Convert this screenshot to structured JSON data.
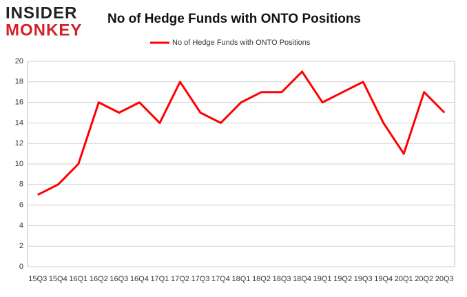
{
  "logo": [
    "INSIDER",
    "MONKEY"
  ],
  "chart_data": {
    "type": "line",
    "title": "No of Hedge Funds with ONTO Positions",
    "categories": [
      "15Q3",
      "15Q4",
      "16Q1",
      "16Q2",
      "16Q3",
      "16Q4",
      "17Q1",
      "17Q2",
      "17Q3",
      "17Q4",
      "18Q1",
      "18Q2",
      "18Q3",
      "18Q4",
      "19Q1",
      "19Q2",
      "19Q3",
      "19Q4",
      "20Q1",
      "20Q2",
      "20Q3"
    ],
    "series": [
      {
        "name": "No of Hedge Funds with ONTO Positions",
        "color": "#ff0000",
        "values": [
          7,
          8,
          10,
          16,
          15,
          16,
          14,
          18,
          15,
          14,
          16,
          17,
          17,
          19,
          16,
          17,
          18,
          14,
          11,
          17,
          15
        ]
      }
    ],
    "ylim": [
      0,
      20
    ],
    "yticks": [
      0,
      2,
      4,
      6,
      8,
      10,
      12,
      14,
      16,
      18,
      20
    ],
    "grid": true,
    "legend": "top"
  }
}
